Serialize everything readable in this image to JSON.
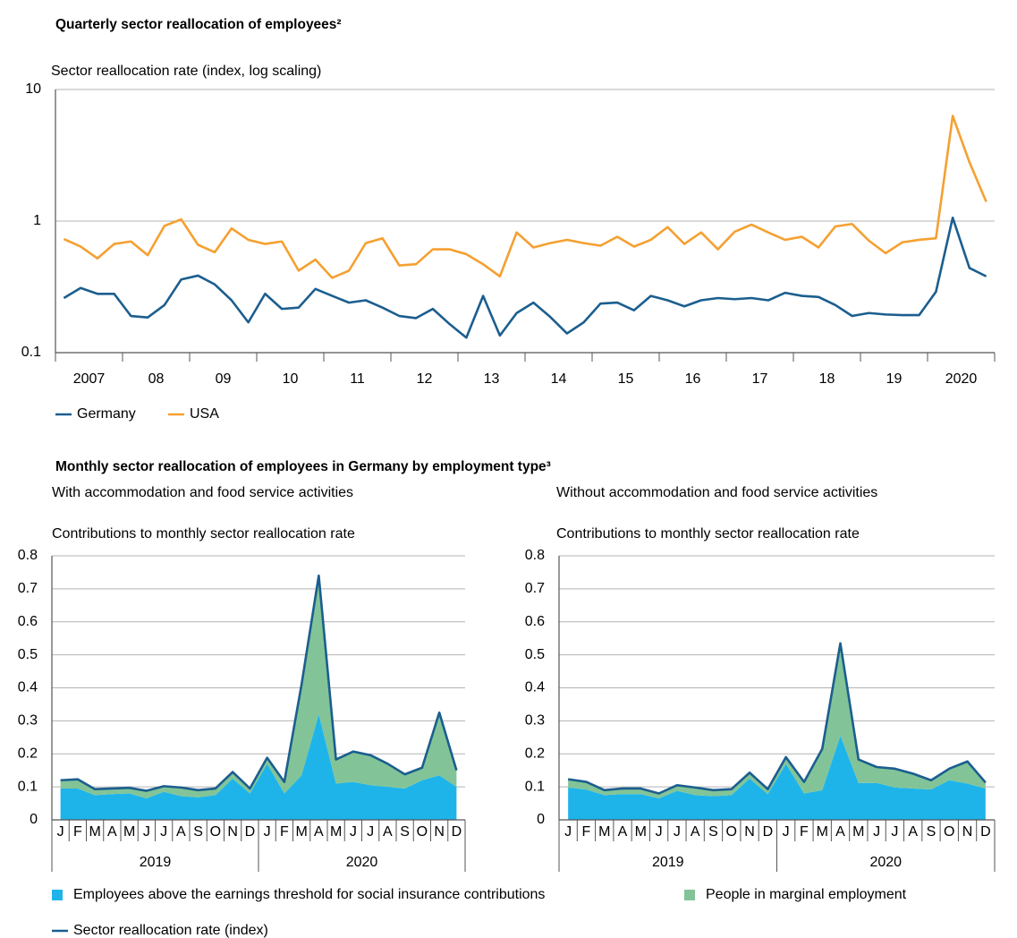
{
  "chart_data": [
    {
      "type": "line",
      "title": "Quarterly sector reallocation of employees²",
      "ylabel": "Sector reallocation rate (index, log scaling)",
      "yscale": "log",
      "ylim": [
        0.1,
        10
      ],
      "yticks": [
        0.1,
        1,
        10
      ],
      "grid": true,
      "categories": [
        "2007",
        null,
        null,
        null,
        "08",
        null,
        null,
        null,
        "09",
        null,
        null,
        null,
        "10",
        null,
        null,
        null,
        "11",
        null,
        null,
        null,
        "12",
        null,
        null,
        null,
        "13",
        null,
        null,
        null,
        "14",
        null,
        null,
        null,
        "15",
        null,
        null,
        null,
        "16",
        null,
        null,
        null,
        "17",
        null,
        null,
        null,
        "18",
        null,
        null,
        null,
        "19",
        null,
        null,
        null,
        "2020",
        null,
        null,
        null
      ],
      "series": [
        {
          "name": "Germany",
          "color": "#1b5e8f",
          "values": [
            0.26,
            0.31,
            0.28,
            0.28,
            0.19,
            0.185,
            0.23,
            0.36,
            0.385,
            0.33,
            0.25,
            0.17,
            0.28,
            0.215,
            0.22,
            0.305,
            0.27,
            0.24,
            0.25,
            0.22,
            0.19,
            0.183,
            0.215,
            0.165,
            0.13,
            0.27,
            0.135,
            0.2,
            0.24,
            0.187,
            0.14,
            0.17,
            0.236,
            0.24,
            0.21,
            0.27,
            0.25,
            0.225,
            0.25,
            0.26,
            0.255,
            0.26,
            0.25,
            0.285,
            0.27,
            0.265,
            0.23,
            0.19,
            0.2,
            0.195,
            0.193,
            0.193,
            0.29,
            1.06,
            0.44,
            0.38
          ]
        },
        {
          "name": "USA",
          "color": "#f5a031",
          "values": [
            0.73,
            0.64,
            0.52,
            0.67,
            0.7,
            0.55,
            0.92,
            1.03,
            0.66,
            0.58,
            0.88,
            0.72,
            0.67,
            0.7,
            0.42,
            0.51,
            0.37,
            0.42,
            0.68,
            0.74,
            0.46,
            0.47,
            0.61,
            0.61,
            0.56,
            0.47,
            0.38,
            0.82,
            0.63,
            0.68,
            0.72,
            0.68,
            0.65,
            0.76,
            0.64,
            0.72,
            0.9,
            0.67,
            0.82,
            0.61,
            0.83,
            0.94,
            0.82,
            0.72,
            0.76,
            0.63,
            0.91,
            0.95,
            0.71,
            0.57,
            0.69,
            0.72,
            0.74,
            6.3,
            2.8,
            1.4
          ]
        }
      ]
    },
    {
      "type": "area",
      "title": "Monthly sector reallocation of employees in Germany by employment type³",
      "subtitle": "With accommodation and food service activities",
      "ylabel": "Contributions to monthly sector reallocation rate",
      "ylim": [
        0,
        0.8
      ],
      "yticks": [
        0,
        0.1,
        0.2,
        0.3,
        0.4,
        0.5,
        0.6,
        0.7,
        0.8
      ],
      "grid": true,
      "categories": [
        "J",
        "F",
        "M",
        "A",
        "M",
        "J",
        "J",
        "A",
        "S",
        "O",
        "N",
        "D",
        "J",
        "F",
        "M",
        "A",
        "M",
        "J",
        "J",
        "A",
        "S",
        "O",
        "N",
        "D"
      ],
      "x_groups": [
        "2019",
        "2020"
      ],
      "series": [
        {
          "name": "Employees above the earnings threshold for social insurance contributions",
          "color": "#1fb4e9",
          "values": [
            0.095,
            0.095,
            0.075,
            0.078,
            0.08,
            0.065,
            0.085,
            0.072,
            0.068,
            0.075,
            0.125,
            0.08,
            0.17,
            0.08,
            0.135,
            0.32,
            0.11,
            0.115,
            0.105,
            0.1,
            0.095,
            0.12,
            0.135,
            0.1
          ]
        },
        {
          "name": "People in marginal employment",
          "color": "#82c497",
          "values": [
            0.025,
            0.028,
            0.018,
            0.017,
            0.017,
            0.023,
            0.017,
            0.026,
            0.022,
            0.02,
            0.02,
            0.015,
            0.018,
            0.035,
            0.275,
            0.42,
            0.073,
            0.092,
            0.091,
            0.07,
            0.043,
            0.038,
            0.19,
            0.05
          ]
        },
        {
          "name": "Sector reallocation rate (index)",
          "type": "line",
          "color": "#1b5e8f",
          "values": [
            0.12,
            0.123,
            0.093,
            0.095,
            0.097,
            0.088,
            0.102,
            0.098,
            0.09,
            0.095,
            0.145,
            0.095,
            0.188,
            0.115,
            0.41,
            0.74,
            0.183,
            0.207,
            0.196,
            0.17,
            0.138,
            0.158,
            0.325,
            0.15
          ]
        }
      ]
    },
    {
      "type": "area",
      "subtitle": "Without accommodation and food service activities",
      "ylabel": "Contributions to monthly sector reallocation rate",
      "ylim": [
        0,
        0.8
      ],
      "yticks": [
        0,
        0.1,
        0.2,
        0.3,
        0.4,
        0.5,
        0.6,
        0.7,
        0.8
      ],
      "grid": true,
      "categories": [
        "J",
        "F",
        "M",
        "A",
        "M",
        "J",
        "J",
        "A",
        "S",
        "O",
        "N",
        "D",
        "J",
        "F",
        "M",
        "A",
        "M",
        "J",
        "J",
        "A",
        "S",
        "O",
        "N",
        "D"
      ],
      "x_groups": [
        "2019",
        "2020"
      ],
      "series": [
        {
          "color": "#1fb4e9",
          "values": [
            0.098,
            0.092,
            0.075,
            0.078,
            0.078,
            0.065,
            0.088,
            0.075,
            0.072,
            0.075,
            0.125,
            0.078,
            0.17,
            0.08,
            0.09,
            0.255,
            0.112,
            0.112,
            0.098,
            0.095,
            0.092,
            0.12,
            0.11,
            0.095
          ]
        },
        {
          "color": "#82c497",
          "values": [
            0.025,
            0.023,
            0.015,
            0.017,
            0.017,
            0.015,
            0.017,
            0.023,
            0.018,
            0.018,
            0.018,
            0.015,
            0.02,
            0.035,
            0.125,
            0.28,
            0.071,
            0.048,
            0.057,
            0.045,
            0.028,
            0.035,
            0.067,
            0.018
          ]
        },
        {
          "type": "line",
          "color": "#1b5e8f",
          "values": [
            0.123,
            0.115,
            0.09,
            0.095,
            0.095,
            0.08,
            0.105,
            0.098,
            0.09,
            0.093,
            0.143,
            0.093,
            0.19,
            0.115,
            0.215,
            0.535,
            0.183,
            0.16,
            0.155,
            0.14,
            0.12,
            0.155,
            0.177,
            0.113
          ]
        }
      ]
    }
  ]
}
